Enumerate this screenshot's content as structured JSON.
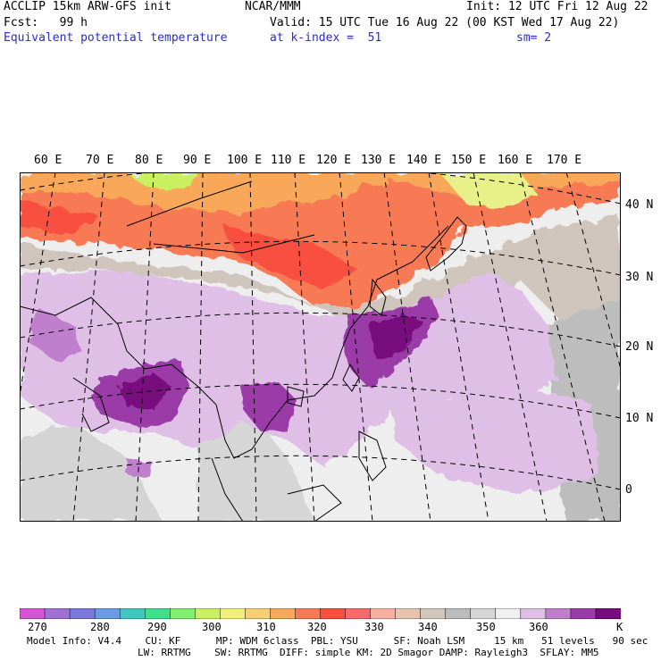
{
  "header": {
    "line1_left": "ACCLIP 15km ARW-GFS init",
    "line1_center": "NCAR/MMM",
    "line1_right": "Init: 12 UTC Fri 12 Aug 22",
    "line2_left": "Fcst:   99 h",
    "line2_right": "Valid: 15 UTC Tue 16 Aug 22 (00 KST Wed 17 Aug 22)",
    "line3_left": "Equivalent potential temperature",
    "line3_mid": "at k-index =  51",
    "line3_right": "sm= 2"
  },
  "map": {
    "lon_labels": [
      "60 E",
      "70 E",
      "80 E",
      "90 E",
      "100 E",
      "110 E",
      "120 E",
      "130 E",
      "140 E",
      "150 E",
      "160 E",
      "170 E"
    ],
    "lat_labels": [
      "40 N",
      "30 N",
      "20 N",
      "10 N",
      "0"
    ]
  },
  "colorbar": {
    "colors": [
      "#d655d6",
      "#a070d8",
      "#7a78e0",
      "#6b9ae8",
      "#3ec8c0",
      "#3ee08a",
      "#7ef06a",
      "#c8f060",
      "#f0f07a",
      "#f8d070",
      "#f8a858",
      "#f87a55",
      "#f85040",
      "#f86a6a",
      "#f8b0a0",
      "#e8c4b0",
      "#d0c6bc",
      "#bcbcbc",
      "#d6d6d6",
      "#f0f0f0",
      "#e0bfe6",
      "#c07fcc",
      "#9a3aa8",
      "#780b7e"
    ],
    "labels": [
      "270",
      "280",
      "290",
      "300",
      "310",
      "320",
      "330",
      "340",
      "350",
      "360",
      "K"
    ]
  },
  "footer": {
    "line1": "Model Info: V4.4    CU: KF      MP: WDM 6class  PBL: YSU      SF: Noah LSM     15 km   51 levels   90 sec",
    "line2": "LW: RRTMG    SW: RRTMG  DIFF: simple KM: 2D Smagor DAMP: Rayleigh3  SFLAY: MM5"
  }
}
